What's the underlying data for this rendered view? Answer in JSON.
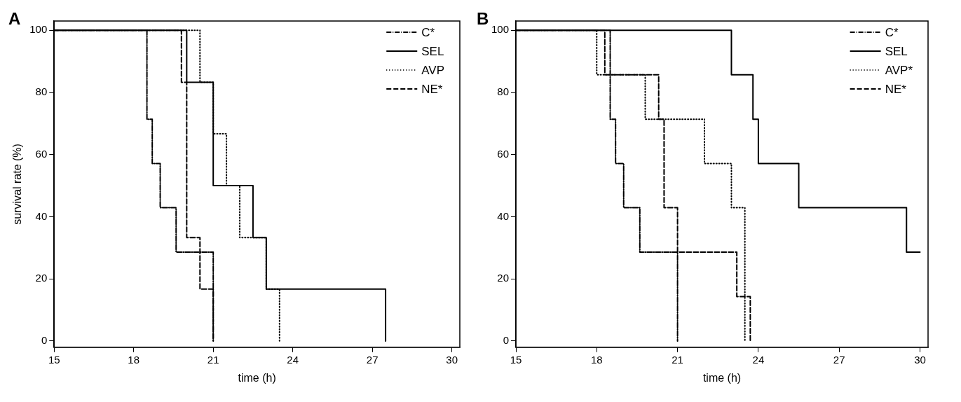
{
  "chart_data": [
    {
      "type": "step",
      "title": "A",
      "xlabel": "time (h)",
      "ylabel": "survival rate (%)",
      "xlim": [
        15,
        30.3
      ],
      "ylim": [
        -2,
        103
      ],
      "xticks": [
        15,
        18,
        21,
        24,
        27,
        30
      ],
      "yticks": [
        0,
        20,
        40,
        60,
        80,
        100
      ],
      "legend": "top right",
      "grid": false,
      "series": [
        {
          "name": "C*",
          "color": "#000000",
          "line_style": "dashdot",
          "x": [
            15,
            18.5,
            18.7,
            19,
            19.6,
            21
          ],
          "values": [
            100,
            71.4,
            57.1,
            42.9,
            28.6,
            0
          ]
        },
        {
          "name": "SEL",
          "color": "#000000",
          "line_style": "solid",
          "x": [
            15,
            20,
            21,
            22.5,
            23,
            27.5
          ],
          "values": [
            100,
            83.3,
            50,
            33.3,
            16.7,
            0
          ]
        },
        {
          "name": "AVP",
          "color": "#000000",
          "line_style": "dotted",
          "x": [
            15,
            20.5,
            21,
            21.5,
            22,
            23,
            23.5
          ],
          "values": [
            100,
            83.3,
            66.7,
            50,
            33.3,
            16.7,
            0
          ]
        },
        {
          "name": "NE*",
          "color": "#000000",
          "line_style": "dashed",
          "x": [
            15,
            19.8,
            20,
            20.5,
            21
          ],
          "values": [
            100,
            83.3,
            33.3,
            16.7,
            0
          ]
        }
      ]
    },
    {
      "type": "step",
      "title": "B",
      "xlabel": "time (h)",
      "xlim": [
        15,
        30.3
      ],
      "ylim": [
        -2,
        103
      ],
      "xticks": [
        15,
        18,
        21,
        24,
        27,
        30
      ],
      "yticks": [
        0,
        20,
        40,
        60,
        80,
        100
      ],
      "legend": "top right",
      "grid": false,
      "series": [
        {
          "name": "C*",
          "color": "#000000",
          "line_style": "dashdot",
          "x": [
            15,
            18.5,
            18.7,
            19,
            19.6,
            21
          ],
          "values": [
            100,
            71.4,
            57.1,
            42.9,
            28.6,
            0
          ]
        },
        {
          "name": "SEL",
          "color": "#000000",
          "line_style": "solid",
          "x": [
            15,
            23,
            23.8,
            24,
            25.5,
            29.5,
            30
          ],
          "values": [
            100,
            85.7,
            71.4,
            57.1,
            42.9,
            28.6,
            28.6
          ]
        },
        {
          "name": "AVP*",
          "color": "#000000",
          "line_style": "dotted",
          "x": [
            15,
            18,
            19.8,
            22,
            23,
            23.5
          ],
          "values": [
            100,
            85.7,
            71.4,
            57.1,
            42.9,
            0
          ]
        },
        {
          "name": "NE*",
          "color": "#000000",
          "line_style": "dashed",
          "x": [
            15,
            18.3,
            20.3,
            20.5,
            21,
            23.2,
            23.7
          ],
          "values": [
            100,
            85.7,
            71.4,
            42.9,
            28.6,
            14.3,
            0
          ]
        }
      ]
    }
  ]
}
